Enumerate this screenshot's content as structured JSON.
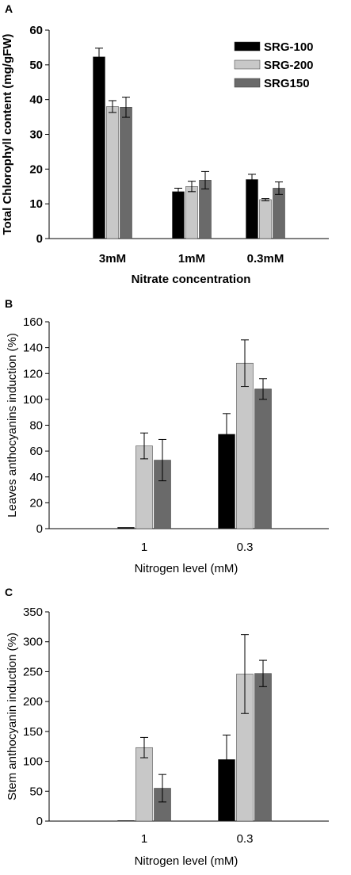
{
  "colors": {
    "series1": "#000000",
    "series2": "#c8c8c8",
    "series3": "#6a6a6a",
    "axis": "#000000",
    "error_bar": "#000000"
  },
  "chart_data": [
    {
      "type": "bar",
      "panel_label": "A",
      "categories": [
        "3mM",
        "1mM",
        "0.3mM"
      ],
      "series": [
        {
          "name": "SRG-100",
          "values": [
            52.3,
            13.5,
            17.0
          ],
          "errors": [
            2.5,
            1.0,
            1.5
          ]
        },
        {
          "name": "SRG-200",
          "values": [
            38.0,
            15.0,
            11.2
          ],
          "errors": [
            1.7,
            1.5,
            0.3
          ]
        },
        {
          "name": "SRG150",
          "values": [
            37.8,
            16.8,
            14.5
          ],
          "errors": [
            2.9,
            2.5,
            1.8
          ]
        }
      ],
      "ylim": [
        0,
        60
      ],
      "yticks": [
        0,
        10,
        20,
        30,
        40,
        50,
        60
      ],
      "xlabel": "Nitrate concentration",
      "ylabel": "Total Chlorophyll content (mg/gFW)",
      "legend": "top-right",
      "grid": false
    },
    {
      "type": "bar",
      "panel_label": "B",
      "categories": [
        "1",
        "0.3"
      ],
      "series": [
        {
          "values": [
            1,
            73
          ],
          "errors": [
            0,
            16
          ]
        },
        {
          "values": [
            64,
            128
          ],
          "errors": [
            10,
            18
          ]
        },
        {
          "values": [
            53,
            108
          ],
          "errors": [
            16,
            8
          ]
        }
      ],
      "ylim": [
        0,
        160
      ],
      "yticks": [
        0,
        20,
        40,
        60,
        80,
        100,
        120,
        140,
        160
      ],
      "xlabel": "Nitrogen level (mM)",
      "ylabel": "Leaves anthocyanins induction (%)",
      "grid": false
    },
    {
      "type": "bar",
      "panel_label": "C",
      "categories": [
        "1",
        "0.3"
      ],
      "series": [
        {
          "values": [
            1,
            103
          ],
          "errors": [
            0,
            41
          ]
        },
        {
          "values": [
            123,
            246
          ],
          "errors": [
            17,
            66
          ]
        },
        {
          "values": [
            55,
            247
          ],
          "errors": [
            23,
            22
          ]
        }
      ],
      "ylim": [
        0,
        350
      ],
      "yticks": [
        0,
        50,
        100,
        150,
        200,
        250,
        300,
        350
      ],
      "xlabel": "Nitrogen level (mM)",
      "ylabel": "Stem anthocyanin induction (%)",
      "grid": false
    }
  ]
}
